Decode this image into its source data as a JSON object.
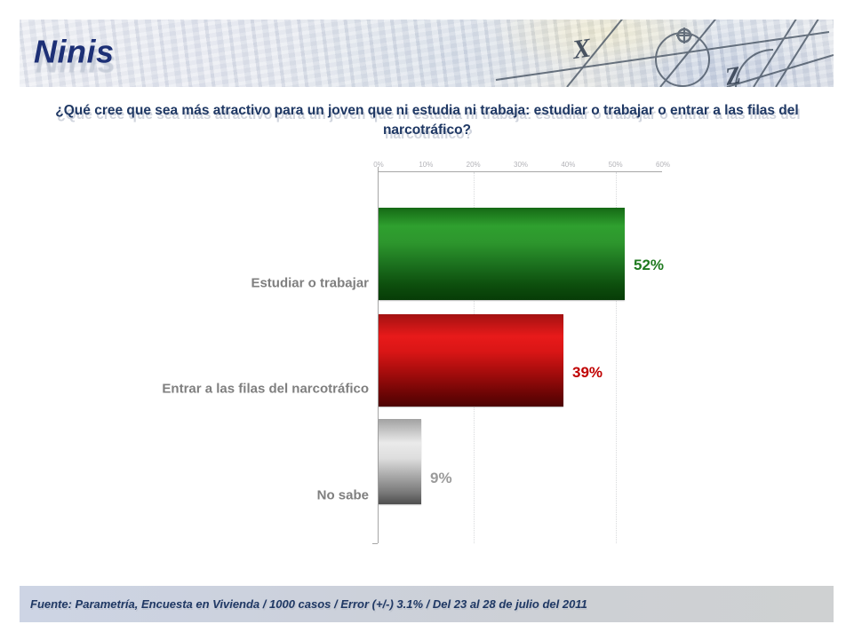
{
  "header": {
    "title": "Ninis"
  },
  "question": {
    "line1": "¿Qué cree que sea más atractivo para un joven que ni estudia ni trabaja: estudiar o trabajar o entrar a las filas del",
    "line2": "narcotráfico?"
  },
  "footer": {
    "source": "Fuente: Parametría, Encuesta en Vivienda / 1000 casos / Error (+/-) 3.1% / Del 23 al 28 de julio del 2011"
  },
  "chart_data": {
    "type": "bar",
    "orientation": "horizontal",
    "categories": [
      "Estudiar o trabajar",
      "Entrar a las filas del narcotráfico",
      "No sabe"
    ],
    "values": [
      52,
      39,
      9
    ],
    "value_labels": [
      "52%",
      "39%",
      "9%"
    ],
    "bar_colors": [
      "#1e7e1e",
      "#c00000",
      "#bfbfbf"
    ],
    "value_label_colors": [
      "#1f7a1f",
      "#c00000",
      "#9b9b9b"
    ],
    "xlim": [
      0,
      60
    ],
    "x_tick_values": [
      0,
      10,
      20,
      30,
      40,
      50,
      60
    ],
    "x_tick_labels": [
      "0%",
      "10%",
      "20%",
      "30%",
      "40%",
      "50%",
      "60%"
    ],
    "gridline_values": [
      20,
      50
    ],
    "axis_labels_position": "top",
    "grid": "dotted-vertical",
    "legend": "none",
    "title": ""
  }
}
